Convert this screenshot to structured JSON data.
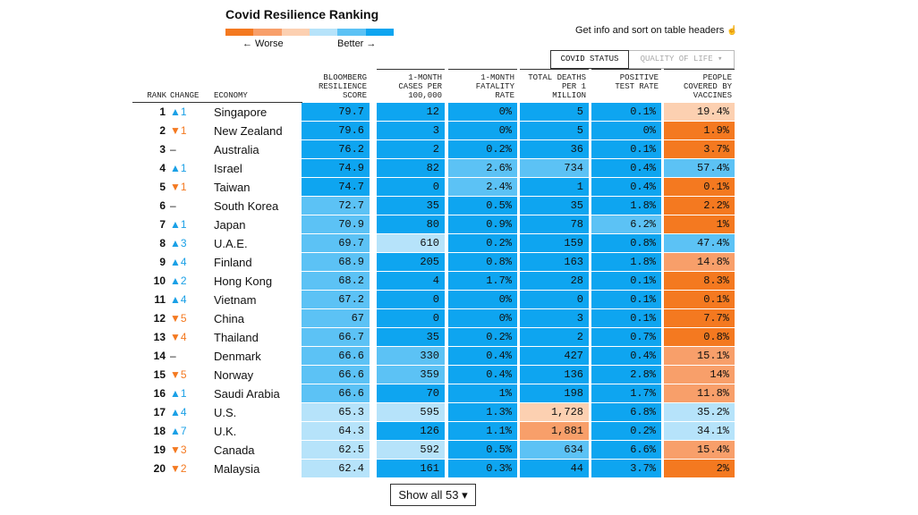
{
  "header": {
    "title": "Covid Resilience Ranking",
    "legend": {
      "colors": [
        "#f47920",
        "#f89f6a",
        "#fcd0b1",
        "#b6e3fa",
        "#5cc2f5",
        "#0ea5f0"
      ],
      "worse": "← Worse",
      "better": "Better →"
    },
    "note": "Get info and sort on table headers"
  },
  "tabs": [
    "COVID STATUS",
    "QUALITY OF LIFE"
  ],
  "table": {
    "columns": [
      "RANK",
      "CHANGE",
      "ECONOMY",
      "BLOOMBERG\nRESILIENCE\nSCORE",
      "1-MONTH\nCASES PER\n100,000",
      "1-MONTH\nFATALITY\nRATE",
      "TOTAL DEATHS\nPER 1\nMILLION",
      "POSITIVE\nTEST RATE",
      "PEOPLE\nCOVERED BY\nVACCINES"
    ],
    "rows": [
      {
        "rank": "1",
        "change": "▲1",
        "economy": "Singapore",
        "cells": [
          "79.7",
          "12",
          "0%",
          "5",
          "0.1%",
          "19.4%"
        ],
        "colors": [
          "#0ea5f0",
          "#0ea5f0",
          "#0ea5f0",
          "#0ea5f0",
          "#0ea5f0",
          "#fcd0b1"
        ]
      },
      {
        "rank": "2",
        "change": "▼1",
        "economy": "New Zealand",
        "cells": [
          "79.6",
          "3",
          "0%",
          "5",
          "0%",
          "1.9%"
        ],
        "colors": [
          "#0ea5f0",
          "#0ea5f0",
          "#0ea5f0",
          "#0ea5f0",
          "#0ea5f0",
          "#f47920"
        ]
      },
      {
        "rank": "3",
        "change": "–",
        "economy": "Australia",
        "cells": [
          "76.2",
          "2",
          "0.2%",
          "36",
          "0.1%",
          "3.7%"
        ],
        "colors": [
          "#0ea5f0",
          "#0ea5f0",
          "#0ea5f0",
          "#0ea5f0",
          "#0ea5f0",
          "#f47920"
        ]
      },
      {
        "rank": "4",
        "change": "▲1",
        "economy": "Israel",
        "cells": [
          "74.9",
          "82",
          "2.6%",
          "734",
          "0.4%",
          "57.4%"
        ],
        "colors": [
          "#0ea5f0",
          "#0ea5f0",
          "#5cc2f5",
          "#5cc2f5",
          "#0ea5f0",
          "#5cc2f5"
        ]
      },
      {
        "rank": "5",
        "change": "▼1",
        "economy": "Taiwan",
        "cells": [
          "74.7",
          "0",
          "2.4%",
          "1",
          "0.4%",
          "0.1%"
        ],
        "colors": [
          "#0ea5f0",
          "#0ea5f0",
          "#5cc2f5",
          "#0ea5f0",
          "#0ea5f0",
          "#f47920"
        ]
      },
      {
        "rank": "6",
        "change": "–",
        "economy": "South Korea",
        "cells": [
          "72.7",
          "35",
          "0.5%",
          "35",
          "1.8%",
          "2.2%"
        ],
        "colors": [
          "#5cc2f5",
          "#0ea5f0",
          "#0ea5f0",
          "#0ea5f0",
          "#0ea5f0",
          "#f47920"
        ]
      },
      {
        "rank": "7",
        "change": "▲1",
        "economy": "Japan",
        "cells": [
          "70.9",
          "80",
          "0.9%",
          "78",
          "6.2%",
          "1%"
        ],
        "colors": [
          "#5cc2f5",
          "#0ea5f0",
          "#0ea5f0",
          "#0ea5f0",
          "#5cc2f5",
          "#f47920"
        ]
      },
      {
        "rank": "8",
        "change": "▲3",
        "economy": "U.A.E.",
        "cells": [
          "69.7",
          "610",
          "0.2%",
          "159",
          "0.8%",
          "47.4%"
        ],
        "colors": [
          "#5cc2f5",
          "#b6e3fa",
          "#0ea5f0",
          "#0ea5f0",
          "#0ea5f0",
          "#5cc2f5"
        ]
      },
      {
        "rank": "9",
        "change": "▲4",
        "economy": "Finland",
        "cells": [
          "68.9",
          "205",
          "0.8%",
          "163",
          "1.8%",
          "14.8%"
        ],
        "colors": [
          "#5cc2f5",
          "#0ea5f0",
          "#0ea5f0",
          "#0ea5f0",
          "#0ea5f0",
          "#f89f6a"
        ]
      },
      {
        "rank": "10",
        "change": "▲2",
        "economy": "Hong Kong",
        "cells": [
          "68.2",
          "4",
          "1.7%",
          "28",
          "0.1%",
          "8.3%"
        ],
        "colors": [
          "#5cc2f5",
          "#0ea5f0",
          "#0ea5f0",
          "#0ea5f0",
          "#0ea5f0",
          "#f47920"
        ]
      },
      {
        "rank": "11",
        "change": "▲4",
        "economy": "Vietnam",
        "cells": [
          "67.2",
          "0",
          "0%",
          "0",
          "0.1%",
          "0.1%"
        ],
        "colors": [
          "#5cc2f5",
          "#0ea5f0",
          "#0ea5f0",
          "#0ea5f0",
          "#0ea5f0",
          "#f47920"
        ]
      },
      {
        "rank": "12",
        "change": "▼5",
        "economy": "China",
        "cells": [
          "67",
          "0",
          "0%",
          "3",
          "0.1%",
          "7.7%"
        ],
        "colors": [
          "#5cc2f5",
          "#0ea5f0",
          "#0ea5f0",
          "#0ea5f0",
          "#0ea5f0",
          "#f47920"
        ]
      },
      {
        "rank": "13",
        "change": "▼4",
        "economy": "Thailand",
        "cells": [
          "66.7",
          "35",
          "0.2%",
          "2",
          "0.7%",
          "0.8%"
        ],
        "colors": [
          "#5cc2f5",
          "#0ea5f0",
          "#0ea5f0",
          "#0ea5f0",
          "#0ea5f0",
          "#f47920"
        ]
      },
      {
        "rank": "14",
        "change": "–",
        "economy": "Denmark",
        "cells": [
          "66.6",
          "330",
          "0.4%",
          "427",
          "0.4%",
          "15.1%"
        ],
        "colors": [
          "#5cc2f5",
          "#5cc2f5",
          "#0ea5f0",
          "#0ea5f0",
          "#0ea5f0",
          "#f89f6a"
        ]
      },
      {
        "rank": "15",
        "change": "▼5",
        "economy": "Norway",
        "cells": [
          "66.6",
          "359",
          "0.4%",
          "136",
          "2.8%",
          "14%"
        ],
        "colors": [
          "#5cc2f5",
          "#5cc2f5",
          "#0ea5f0",
          "#0ea5f0",
          "#0ea5f0",
          "#f89f6a"
        ]
      },
      {
        "rank": "16",
        "change": "▲1",
        "economy": "Saudi Arabia",
        "cells": [
          "66.6",
          "70",
          "1%",
          "198",
          "1.7%",
          "11.8%"
        ],
        "colors": [
          "#5cc2f5",
          "#0ea5f0",
          "#0ea5f0",
          "#0ea5f0",
          "#0ea5f0",
          "#f89f6a"
        ]
      },
      {
        "rank": "17",
        "change": "▲4",
        "economy": "U.S.",
        "cells": [
          "65.3",
          "595",
          "1.3%",
          "1,728",
          "6.8%",
          "35.2%"
        ],
        "colors": [
          "#b6e3fa",
          "#b6e3fa",
          "#0ea5f0",
          "#fcd0b1",
          "#0ea5f0",
          "#b6e3fa"
        ]
      },
      {
        "rank": "18",
        "change": "▲7",
        "economy": "U.K.",
        "cells": [
          "64.3",
          "126",
          "1.1%",
          "1,881",
          "0.2%",
          "34.1%"
        ],
        "colors": [
          "#b6e3fa",
          "#0ea5f0",
          "#0ea5f0",
          "#f89f6a",
          "#0ea5f0",
          "#b6e3fa"
        ]
      },
      {
        "rank": "19",
        "change": "▼3",
        "economy": "Canada",
        "cells": [
          "62.5",
          "592",
          "0.5%",
          "634",
          "6.6%",
          "15.4%"
        ],
        "colors": [
          "#b6e3fa",
          "#b6e3fa",
          "#0ea5f0",
          "#5cc2f5",
          "#0ea5f0",
          "#f89f6a"
        ]
      },
      {
        "rank": "20",
        "change": "▼2",
        "economy": "Malaysia",
        "cells": [
          "62.4",
          "161",
          "0.3%",
          "44",
          "3.7%",
          "2%"
        ],
        "colors": [
          "#b6e3fa",
          "#0ea5f0",
          "#0ea5f0",
          "#0ea5f0",
          "#0ea5f0",
          "#f47920"
        ]
      }
    ]
  },
  "button": "Show all 53"
}
